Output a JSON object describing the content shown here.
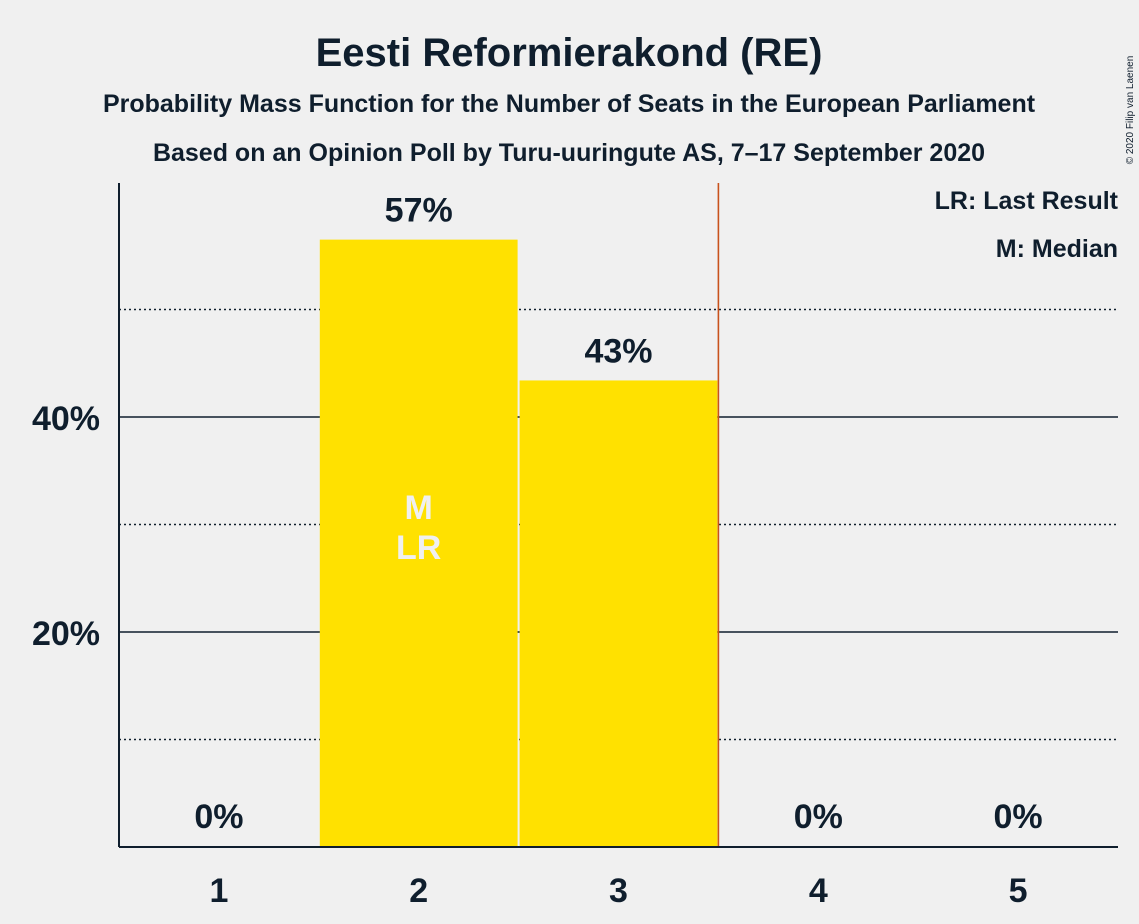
{
  "chart_data": {
    "type": "bar",
    "title": "Eesti Reformierakond (RE)",
    "subtitle_1": "Probability Mass Function for the Number of Seats in the European Parliament",
    "subtitle_2": "Based on an Opinion Poll by Turu-uuringute AS, 7–17 September 2020",
    "copyright": "© 2020 Filip van Laenen",
    "categories": [
      "1",
      "2",
      "3",
      "4",
      "5"
    ],
    "values": [
      0,
      56.5,
      43.4,
      0,
      0
    ],
    "value_labels": [
      "0%",
      "57%",
      "43%",
      "0%",
      "0%"
    ],
    "ylim": [
      0,
      60
    ],
    "y_ticks": [
      {
        "value": 20,
        "label": "20%"
      },
      {
        "value": 40,
        "label": "40%"
      }
    ],
    "minor_gridlines": [
      10,
      30,
      50
    ],
    "median_category": "2",
    "last_result_category": "2",
    "bar_markers": [
      "M",
      "LR"
    ],
    "majority_line_after_category": "3",
    "legend": [
      "LR: Last Result",
      "M: Median"
    ],
    "legend_position": "top-right",
    "colors": {
      "bar": "#ffe100",
      "background": "#f0f0f0",
      "text": "#0f1e2d",
      "marker_text": "#f0f0f0",
      "majority_line": "#c8521c",
      "grid": "#0f1e2d"
    }
  }
}
